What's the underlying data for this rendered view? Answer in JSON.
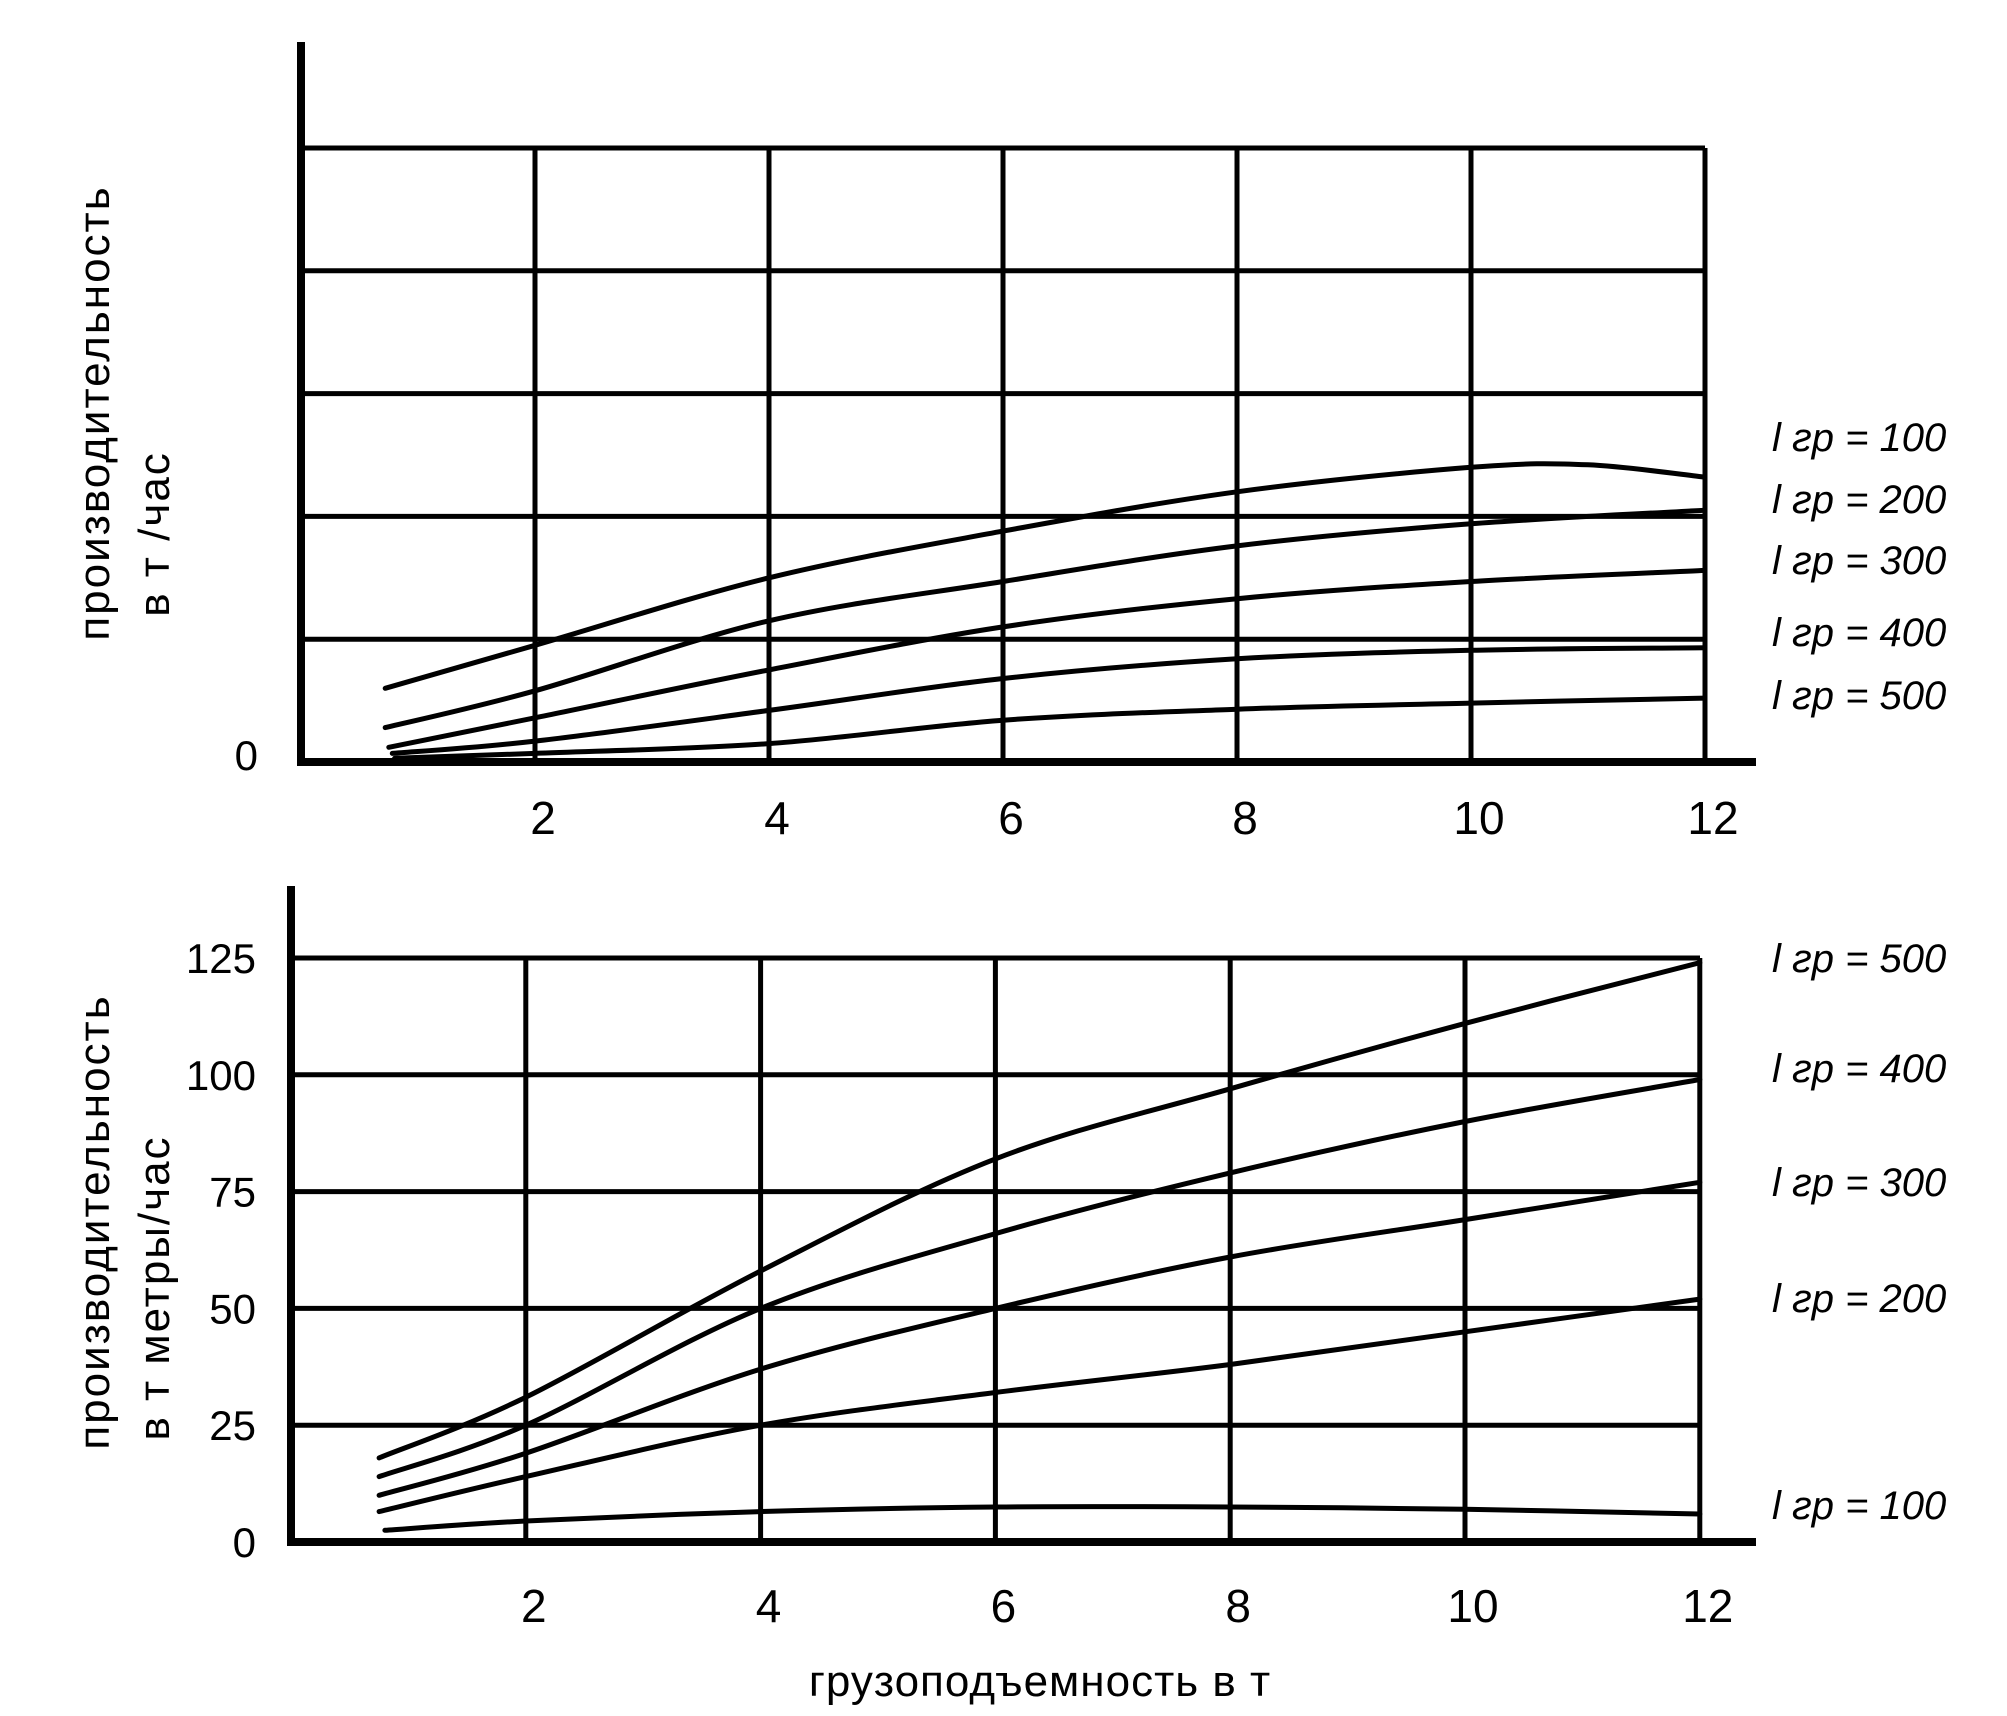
{
  "colors": {
    "background": "#ffffff",
    "ink": "#000000"
  },
  "axis_titles": {
    "top_y_line1": "производительность",
    "top_y_line2": "в т /час",
    "bottom_y_line1": "производительность",
    "bottom_y_line2": "в т метры/час",
    "x_title": "грузоподъемность в т"
  },
  "chart_data": [
    {
      "id": "top",
      "type": "line",
      "title": "",
      "ylabel": "производительность в т /час",
      "xlabel": "грузоподъемность в т",
      "grid": true,
      "legend_position": "right",
      "xlim": [
        0,
        12.4
      ],
      "x_ticks": [
        2,
        4,
        6,
        8,
        10,
        12
      ],
      "ylim_grid_divisions": [
        0,
        5
      ],
      "y_axis_labels_shown": [
        {
          "label": "0",
          "value": 0
        }
      ],
      "y_axis_note": "y axis divided into 5 unlabeled grid divisions; only 0 labeled",
      "legend": [
        "l гр = 100",
        "l гр = 200",
        "l гр = 300",
        "l гр = 400",
        "l гр = 500"
      ],
      "series": [
        {
          "name": "l гр = 100",
          "x": [
            0.72,
            2,
            4,
            6,
            8,
            10,
            11,
            12
          ],
          "y": [
            0.6,
            0.95,
            1.5,
            1.88,
            2.2,
            2.4,
            2.42,
            2.32
          ]
        },
        {
          "name": "l гр = 200",
          "x": [
            0.72,
            2,
            4,
            6,
            8,
            10,
            12
          ],
          "y": [
            0.28,
            0.58,
            1.15,
            1.47,
            1.76,
            1.94,
            2.05
          ]
        },
        {
          "name": "l гр = 300",
          "x": [
            0.75,
            2,
            4,
            6,
            8,
            10,
            12
          ],
          "y": [
            0.12,
            0.36,
            0.75,
            1.1,
            1.33,
            1.47,
            1.56
          ]
        },
        {
          "name": "l гр = 400",
          "x": [
            0.78,
            2,
            4,
            6,
            8,
            10,
            12
          ],
          "y": [
            0.07,
            0.17,
            0.42,
            0.68,
            0.84,
            0.91,
            0.93
          ]
        },
        {
          "name": "l гр = 500",
          "x": [
            0.8,
            2,
            4,
            6,
            8,
            10,
            12
          ],
          "y": [
            0.03,
            0.07,
            0.15,
            0.34,
            0.43,
            0.48,
            0.52
          ]
        }
      ]
    },
    {
      "id": "bottom",
      "type": "line",
      "title": "",
      "ylabel": "производительность в т метры/час",
      "xlabel": "грузоподъемность в т",
      "grid": true,
      "legend_position": "right",
      "xlim": [
        0,
        12.4
      ],
      "x_ticks": [
        2,
        4,
        6,
        8,
        10,
        12
      ],
      "ylim": [
        0,
        131
      ],
      "y_ticks": [
        0,
        25,
        50,
        75,
        100,
        125
      ],
      "legend": [
        "l гр = 500",
        "l гр = 400",
        "l гр = 300",
        "l гр = 200",
        "l гр = 100"
      ],
      "series": [
        {
          "name": "l гр = 500",
          "x": [
            0.75,
            2,
            4,
            6,
            8,
            10,
            12
          ],
          "y": [
            18,
            31,
            58,
            82,
            97,
            111,
            124
          ]
        },
        {
          "name": "l гр = 400",
          "x": [
            0.75,
            2,
            4,
            6,
            8,
            10,
            12
          ],
          "y": [
            14,
            25,
            50,
            66,
            79,
            90,
            99
          ]
        },
        {
          "name": "l гр = 300",
          "x": [
            0.75,
            2,
            4,
            6,
            8,
            10,
            12
          ],
          "y": [
            10,
            19,
            37,
            50,
            61,
            69,
            77
          ]
        },
        {
          "name": "l гр = 200",
          "x": [
            0.75,
            2,
            4,
            6,
            8,
            10,
            12
          ],
          "y": [
            6.5,
            14,
            25,
            32,
            38,
            45,
            52
          ]
        },
        {
          "name": "l гр = 100",
          "x": [
            0.8,
            2,
            4,
            6,
            8,
            10,
            12
          ],
          "y": [
            2.5,
            4.5,
            6.5,
            7.5,
            7.5,
            7,
            6
          ]
        }
      ]
    }
  ]
}
